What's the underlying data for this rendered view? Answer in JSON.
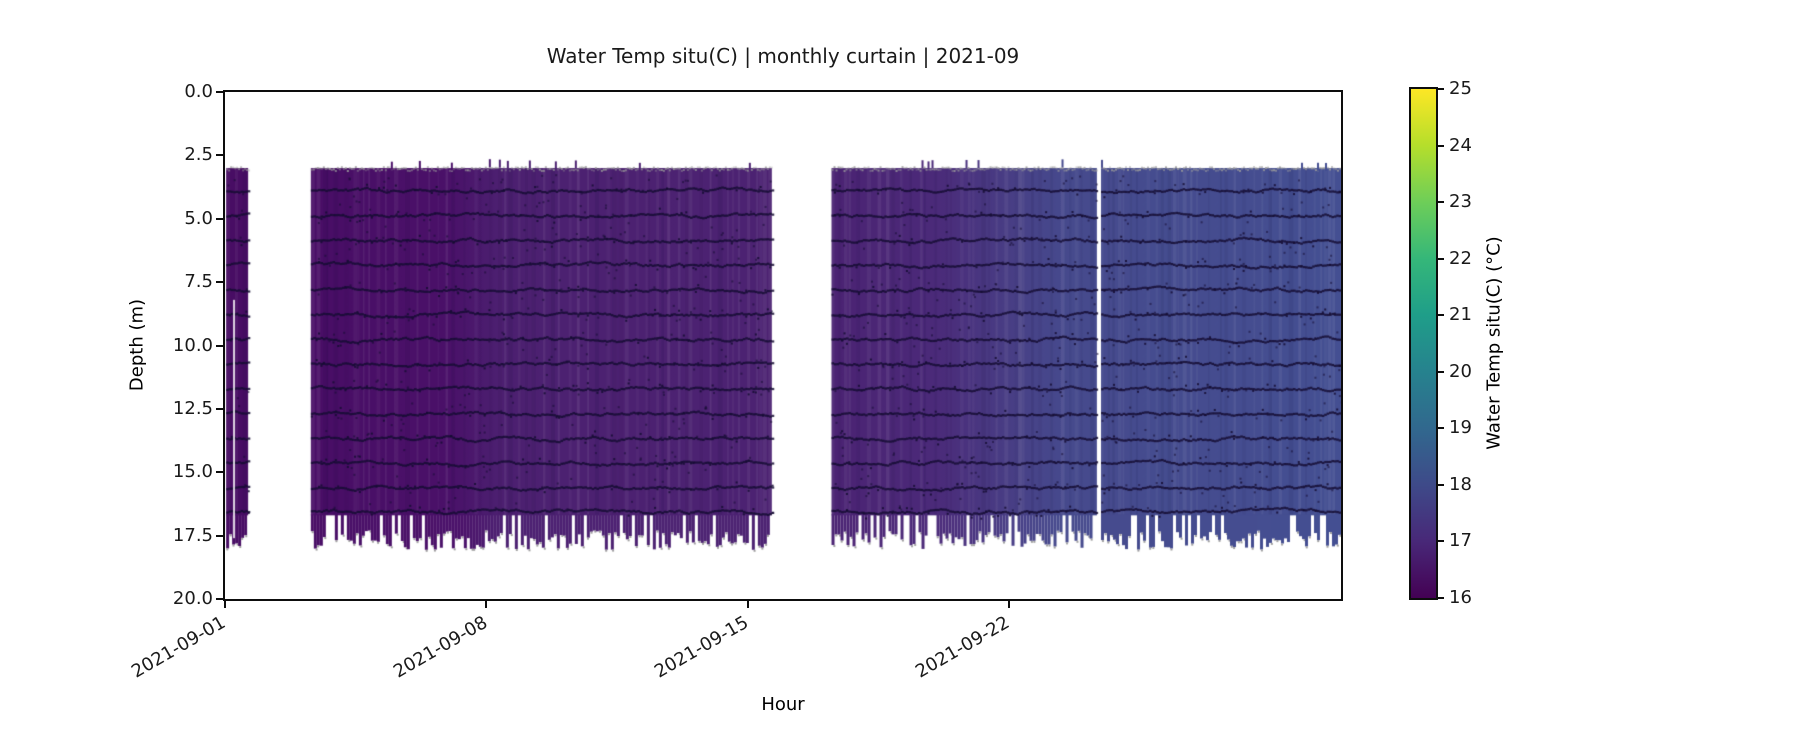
{
  "figure": {
    "title": "Water Temp situ(C) | monthly curtain | 2021-09"
  },
  "chart_data": {
    "type": "heatmap",
    "title": "Water Temp situ(C) | monthly curtain | 2021-09",
    "xlabel": "Hour",
    "ylabel": "Depth (m)",
    "x_range_days": [
      0,
      29.9
    ],
    "depth_range_m": [
      0,
      20
    ],
    "x_ticks": [
      {
        "label": "2021-09-01",
        "day": 0
      },
      {
        "label": "2021-09-08",
        "day": 7
      },
      {
        "label": "2021-09-15",
        "day": 14
      },
      {
        "label": "2021-09-22",
        "day": 21
      }
    ],
    "y_ticks": [
      {
        "label": "0.0",
        "m": 0
      },
      {
        "label": "2.5",
        "m": 2.5
      },
      {
        "label": "5.0",
        "m": 5
      },
      {
        "label": "7.5",
        "m": 7.5
      },
      {
        "label": "10.0",
        "m": 10
      },
      {
        "label": "12.5",
        "m": 12.5
      },
      {
        "label": "15.0",
        "m": 15
      },
      {
        "label": "17.5",
        "m": 17.5
      },
      {
        "label": "20.0",
        "m": 20
      }
    ],
    "colorbar": {
      "label": "Water Temp situ(C) (°C)",
      "ticks": [
        16,
        17,
        18,
        19,
        20,
        21,
        22,
        23,
        24,
        25
      ],
      "range_c": [
        16,
        25
      ],
      "colormap": "viridis",
      "viridis_stops": [
        "#440154",
        "#482878",
        "#3e4a89",
        "#31688e",
        "#26828e",
        "#1f9e89",
        "#35b779",
        "#6ece58",
        "#b5de2b",
        "#fde725"
      ]
    },
    "curtain": {
      "top_depth_m": 3.0,
      "solid_bottom_m": 16.7,
      "ragged_bottom_m": 18.1,
      "bands_days": [
        [
          0.03,
          0.62
        ],
        [
          2.3,
          14.65
        ],
        [
          16.25,
          23.36
        ],
        [
          23.47,
          29.9
        ]
      ],
      "gaps_days": [
        [
          0.62,
          2.3
        ],
        [
          14.65,
          16.25
        ],
        [
          23.36,
          23.47
        ]
      ],
      "timeline": [
        {
          "day": 0,
          "temp_c": 16.3,
          "color": "#480d64"
        },
        {
          "day": 2.3,
          "temp_c": 16.3,
          "color": "#490e66"
        },
        {
          "day": 6.3,
          "temp_c": 16.35,
          "color": "#4a1169"
        },
        {
          "day": 7.4,
          "temp_c": 16.7,
          "color": "#4c2171"
        },
        {
          "day": 14.65,
          "temp_c": 16.7,
          "color": "#4c2272"
        },
        {
          "day": 16.25,
          "temp_c": 16.75,
          "color": "#4b2373"
        },
        {
          "day": 19.0,
          "temp_c": 16.9,
          "color": "#4b2a79"
        },
        {
          "day": 22.3,
          "temp_c": 17.9,
          "color": "#464a8d"
        },
        {
          "day": 29.9,
          "temp_c": 18.0,
          "color": "#444f92"
        }
      ],
      "trace_depths_m": [
        3.9,
        4.88,
        5.86,
        6.83,
        7.81,
        8.79,
        9.77,
        10.74,
        11.72,
        12.7,
        13.68,
        14.65,
        15.63,
        16.55
      ],
      "trace_color": "#150d33",
      "speckle_color": "#a0a0a0",
      "white_line": {
        "day": 0.22,
        "top_m": 8.2,
        "bottom_m": 17.6
      }
    }
  }
}
